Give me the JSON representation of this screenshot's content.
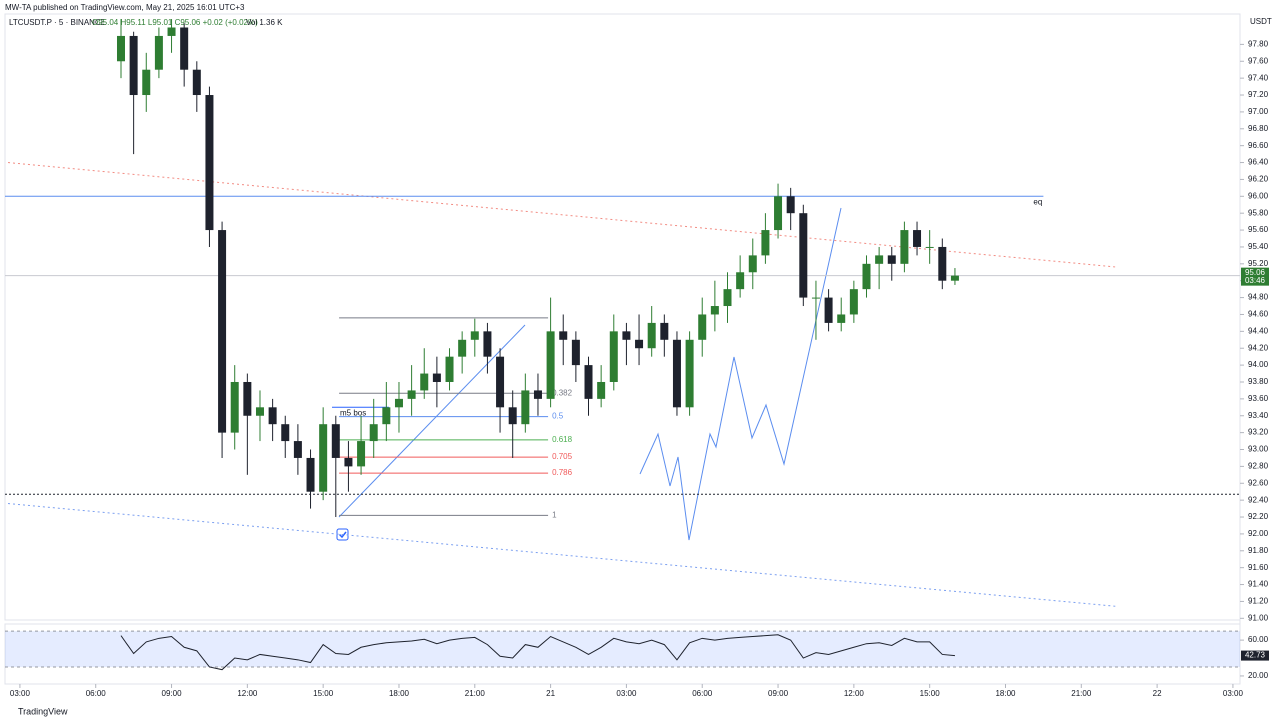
{
  "header": {
    "published": "MW-TA published on TradingView.com, May 21, 2025 16:01 UTC+3",
    "symbol": "LTCUSDT.P · 5 · BINANCE",
    "ohlc": "O95.04 H95.11 L95.01 C95.06 +0.02 (+0.02%)",
    "volume": "Vol 1.36 K",
    "currency": "USDT"
  },
  "footer": {
    "brand": "TradingView"
  },
  "chart_data": {
    "type": "candlestick",
    "up_color": "#2e7d32",
    "down_color": "#1e222d",
    "x": [
      7,
      7.5,
      8,
      8.5,
      9,
      9.5,
      10,
      10.5,
      11,
      11.5,
      12,
      12.5,
      13,
      13.5,
      14,
      14.5,
      15,
      15.5,
      16,
      16.5,
      17,
      17.5,
      18,
      18.5,
      19,
      19.5,
      20,
      20.5,
      21,
      21.5,
      22,
      22.5,
      23,
      23.5,
      24,
      24.5,
      25,
      25.5,
      26,
      26.5,
      27,
      27.5,
      28,
      28.5,
      29,
      29.5,
      30,
      30.5,
      31,
      31.5,
      32,
      32.5,
      33,
      33.5,
      34,
      34.5,
      35,
      35.5,
      36,
      36.5,
      37,
      37.5,
      38,
      38.5,
      39,
      39.5,
      40
    ],
    "candles": [
      [
        97.6,
        98.1,
        97.4,
        97.9
      ],
      [
        97.9,
        97.95,
        96.5,
        97.2
      ],
      [
        97.2,
        97.7,
        97.0,
        97.5
      ],
      [
        97.5,
        98.0,
        97.4,
        97.9
      ],
      [
        97.9,
        98.1,
        97.7,
        98.0
      ],
      [
        98.0,
        98.05,
        97.3,
        97.5
      ],
      [
        97.5,
        97.6,
        97.0,
        97.2
      ],
      [
        97.2,
        97.3,
        95.4,
        95.6
      ],
      [
        95.6,
        95.7,
        92.9,
        93.2
      ],
      [
        93.2,
        94.0,
        93.0,
        93.8
      ],
      [
        93.8,
        93.9,
        92.7,
        93.4
      ],
      [
        93.4,
        93.7,
        93.1,
        93.5
      ],
      [
        93.5,
        93.6,
        93.1,
        93.3
      ],
      [
        93.3,
        93.4,
        92.9,
        93.1
      ],
      [
        93.1,
        93.3,
        92.7,
        92.9
      ],
      [
        92.9,
        93.0,
        92.3,
        92.5
      ],
      [
        92.5,
        93.5,
        92.4,
        93.3
      ],
      [
        93.3,
        93.4,
        92.2,
        92.9
      ],
      [
        92.9,
        93.1,
        92.5,
        92.8
      ],
      [
        92.8,
        93.4,
        92.7,
        93.1
      ],
      [
        93.1,
        93.6,
        92.9,
        93.3
      ],
      [
        93.3,
        93.8,
        93.1,
        93.5
      ],
      [
        93.5,
        93.8,
        93.2,
        93.6
      ],
      [
        93.6,
        94.0,
        93.4,
        93.7
      ],
      [
        93.7,
        94.2,
        93.6,
        93.9
      ],
      [
        93.9,
        94.1,
        93.5,
        93.8
      ],
      [
        93.8,
        94.2,
        93.7,
        94.1
      ],
      [
        94.1,
        94.4,
        93.9,
        94.3
      ],
      [
        94.3,
        94.55,
        94.1,
        94.4
      ],
      [
        94.4,
        94.5,
        93.9,
        94.1
      ],
      [
        94.1,
        94.2,
        93.2,
        93.5
      ],
      [
        93.5,
        93.7,
        92.9,
        93.3
      ],
      [
        93.3,
        93.9,
        93.2,
        93.7
      ],
      [
        93.7,
        93.9,
        93.4,
        93.6
      ],
      [
        93.6,
        94.8,
        93.5,
        94.4
      ],
      [
        94.4,
        94.6,
        94.0,
        94.3
      ],
      [
        94.3,
        94.4,
        93.8,
        94.0
      ],
      [
        94.0,
        94.1,
        93.4,
        93.6
      ],
      [
        93.6,
        94.0,
        93.5,
        93.8
      ],
      [
        93.8,
        94.6,
        93.7,
        94.4
      ],
      [
        94.4,
        94.5,
        94.0,
        94.3
      ],
      [
        94.3,
        94.6,
        94.0,
        94.2
      ],
      [
        94.2,
        94.7,
        94.1,
        94.5
      ],
      [
        94.5,
        94.6,
        94.1,
        94.3
      ],
      [
        94.3,
        94.4,
        93.4,
        93.5
      ],
      [
        93.5,
        94.4,
        93.4,
        94.3
      ],
      [
        94.3,
        94.8,
        94.1,
        94.6
      ],
      [
        94.6,
        95.0,
        94.4,
        94.7
      ],
      [
        94.7,
        95.1,
        94.5,
        94.9
      ],
      [
        94.9,
        95.3,
        94.8,
        95.1
      ],
      [
        95.1,
        95.5,
        94.9,
        95.3
      ],
      [
        95.3,
        95.8,
        95.2,
        95.6
      ],
      [
        95.6,
        96.15,
        95.5,
        96.0
      ],
      [
        96.0,
        96.1,
        95.6,
        95.8
      ],
      [
        95.8,
        95.9,
        94.7,
        94.8
      ],
      [
        94.8,
        95.0,
        94.3,
        94.8
      ],
      [
        94.8,
        94.9,
        94.4,
        94.5
      ],
      [
        94.5,
        94.8,
        94.4,
        94.6
      ],
      [
        94.6,
        95.0,
        94.5,
        94.9
      ],
      [
        94.9,
        95.3,
        94.8,
        95.2
      ],
      [
        95.2,
        95.4,
        94.9,
        95.3
      ],
      [
        95.3,
        95.4,
        95.0,
        95.2
      ],
      [
        95.2,
        95.7,
        95.1,
        95.6
      ],
      [
        95.6,
        95.7,
        95.3,
        95.4
      ],
      [
        95.4,
        95.6,
        95.2,
        95.4
      ],
      [
        95.4,
        95.5,
        94.9,
        95.0
      ],
      [
        95.0,
        95.15,
        94.95,
        95.06
      ]
    ],
    "xlim": [
      2.41,
      51.28
    ],
    "ylim": [
      90.98,
      98.16
    ],
    "xticks": [
      {
        "value": 3,
        "label": "03:00"
      },
      {
        "value": 6,
        "label": "06:00"
      },
      {
        "value": 9,
        "label": "09:00"
      },
      {
        "value": 12,
        "label": "12:00"
      },
      {
        "value": 15,
        "label": "15:00"
      },
      {
        "value": 18,
        "label": "18:00"
      },
      {
        "value": 21,
        "label": "21:00"
      },
      {
        "value": 24,
        "label": "21"
      },
      {
        "value": 27,
        "label": "03:00"
      },
      {
        "value": 30,
        "label": "06:00"
      },
      {
        "value": 33,
        "label": "09:00"
      },
      {
        "value": 36,
        "label": "12:00"
      },
      {
        "value": 39,
        "label": "15:00"
      },
      {
        "value": 42,
        "label": "18:00"
      },
      {
        "value": 45,
        "label": "21:00"
      },
      {
        "value": 48,
        "label": "22"
      },
      {
        "value": 51,
        "label": "03:00"
      }
    ],
    "yticks": [
      {
        "value": 91.0,
        "label": "91.00"
      },
      {
        "value": 91.2,
        "label": "91.20"
      },
      {
        "value": 91.4,
        "label": "91.40"
      },
      {
        "value": 91.6,
        "label": "91.60"
      },
      {
        "value": 91.8,
        "label": "91.80"
      },
      {
        "value": 92.0,
        "label": "92.00"
      },
      {
        "value": 92.2,
        "label": "92.20"
      },
      {
        "value": 92.4,
        "label": "92.40"
      },
      {
        "value": 92.6,
        "label": "92.60"
      },
      {
        "value": 92.8,
        "label": "92.80"
      },
      {
        "value": 93.0,
        "label": "93.00"
      },
      {
        "value": 93.2,
        "label": "93.20"
      },
      {
        "value": 93.4,
        "label": "93.40"
      },
      {
        "value": 93.6,
        "label": "93.60"
      },
      {
        "value": 93.8,
        "label": "93.80"
      },
      {
        "value": 94.0,
        "label": "94.00"
      },
      {
        "value": 94.2,
        "label": "94.20"
      },
      {
        "value": 94.4,
        "label": "94.40"
      },
      {
        "value": 94.6,
        "label": "94.60"
      },
      {
        "value": 94.8,
        "label": "94.80"
      },
      {
        "value": 95.0,
        "label": "95.00"
      },
      {
        "value": 95.2,
        "label": "95.20"
      },
      {
        "value": 95.4,
        "label": "95.40"
      },
      {
        "value": 95.6,
        "label": "95.60"
      },
      {
        "value": 95.8,
        "label": "95.80"
      },
      {
        "value": 96.0,
        "label": "96.00"
      },
      {
        "value": 96.2,
        "label": "96.20"
      },
      {
        "value": 96.4,
        "label": "96.40"
      },
      {
        "value": 96.6,
        "label": "96.60"
      },
      {
        "value": 96.8,
        "label": "96.80"
      },
      {
        "value": 97.0,
        "label": "97.00"
      },
      {
        "value": 97.2,
        "label": "97.20"
      },
      {
        "value": 97.4,
        "label": "97.40"
      },
      {
        "value": 97.6,
        "label": "97.60"
      },
      {
        "value": 97.8,
        "label": "97.80"
      }
    ],
    "last_price": {
      "value": 95.06,
      "label": "95.06",
      "countdown": "03:46",
      "color": "#2e7d32"
    },
    "levels": [
      {
        "value": 96.0,
        "label": "eq",
        "color": "#5b8def",
        "end": 43.5
      },
      {
        "value": 92.47,
        "color": "#1e222d",
        "dashed": true
      }
    ],
    "trendlines": [
      {
        "x": [
          2.53,
          46.45
        ],
        "y": [
          96.4,
          95.16
        ],
        "color": "#f28b82"
      },
      {
        "x": [
          2.53,
          46.45
        ],
        "y": [
          92.36,
          91.14
        ],
        "color": "#7b9ff0"
      }
    ],
    "fib": {
      "x": [
        15.63,
        23.9
      ],
      "high": 94.56,
      "low": 92.22,
      "levels": [
        {
          "level": 0,
          "color": "#787b86"
        },
        {
          "level": 0.382,
          "color": "#787b86"
        },
        {
          "level": 0.5,
          "color": "#5b8def"
        },
        {
          "level": 0.618,
          "color": "#4caf50"
        },
        {
          "level": 0.705,
          "color": "#f05a5a"
        },
        {
          "level": 0.786,
          "color": "#f05a5a"
        },
        {
          "level": 1,
          "color": "#787b86"
        }
      ]
    },
    "bos": {
      "label": "m5 bos",
      "value": 93.5,
      "x": [
        15.35,
        17.6
      ]
    },
    "rsi": {
      "values": [
        65,
        45,
        58,
        62,
        64,
        52,
        48,
        30,
        27,
        40,
        38,
        44,
        42,
        40,
        38,
        35,
        55,
        45,
        44,
        52,
        55,
        57,
        58,
        59,
        61,
        56,
        60,
        62,
        63,
        55,
        42,
        40,
        55,
        52,
        64,
        58,
        52,
        44,
        52,
        62,
        58,
        56,
        60,
        55,
        38,
        57,
        62,
        60,
        62,
        63,
        64,
        65,
        66,
        60,
        40,
        46,
        44,
        48,
        52,
        56,
        57,
        54,
        62,
        58,
        58,
        44,
        42.73
      ],
      "last_label": "42.73",
      "ylim": [
        11,
        78
      ],
      "band": [
        30,
        70
      ],
      "yticks": [
        {
          "value": 60,
          "label": "60.00"
        },
        {
          "value": 20,
          "label": "20.00"
        }
      ]
    }
  }
}
